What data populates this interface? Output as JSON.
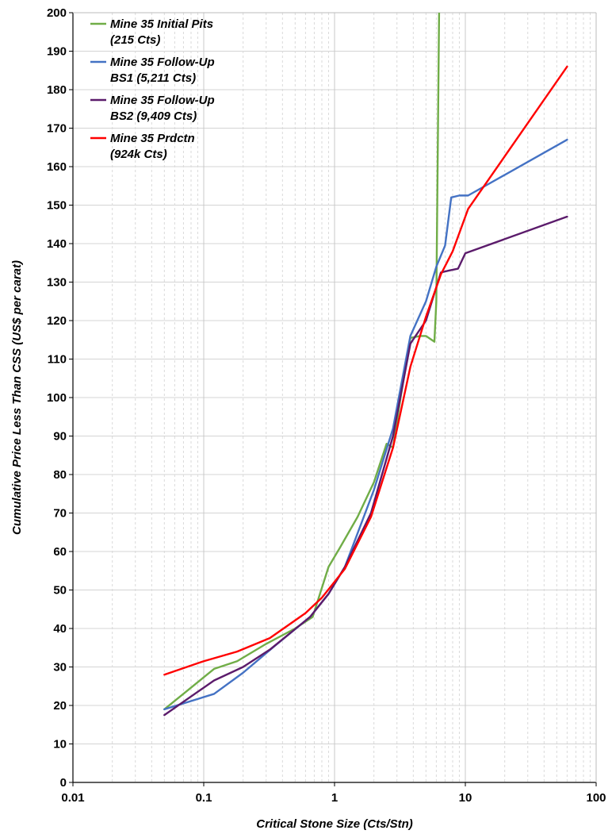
{
  "chart_data": {
    "type": "line",
    "xlabel": "Critical Stone Size (Cts/Stn)",
    "ylabel": "Cumulative Price Less Than CSS (US$ per carat)",
    "x_scale": "log",
    "xlim": [
      0.01,
      100
    ],
    "ylim": [
      0,
      200
    ],
    "x_ticks": [
      {
        "value": 0.01,
        "label": "0.01"
      },
      {
        "value": 0.1,
        "label": "0.1"
      },
      {
        "value": 1,
        "label": "1"
      },
      {
        "value": 10,
        "label": "10"
      },
      {
        "value": 100,
        "label": "100"
      }
    ],
    "y_ticks": [
      0,
      10,
      20,
      30,
      40,
      50,
      60,
      70,
      80,
      90,
      100,
      110,
      120,
      130,
      140,
      150,
      160,
      170,
      180,
      190,
      200
    ],
    "grid": true,
    "legend_position": "top-left",
    "series": [
      {
        "name_lines": [
          "Mine 35 Initial Pits",
          "(215 Cts)"
        ],
        "color": "#70ad47",
        "points": [
          [
            0.05,
            19
          ],
          [
            0.12,
            29.5
          ],
          [
            0.18,
            31.5
          ],
          [
            0.3,
            36
          ],
          [
            0.5,
            40
          ],
          [
            0.68,
            43
          ],
          [
            0.9,
            56
          ],
          [
            1.1,
            61
          ],
          [
            1.5,
            69
          ],
          [
            2.0,
            78
          ],
          [
            2.5,
            88
          ],
          [
            2.8,
            87
          ],
          [
            3.2,
            100
          ],
          [
            3.8,
            115.5
          ],
          [
            4.5,
            116
          ],
          [
            5.0,
            116
          ],
          [
            5.8,
            114.5
          ],
          [
            6.0,
            125
          ],
          [
            6.3,
            200
          ]
        ]
      },
      {
        "name_lines": [
          "Mine 35 Follow-Up",
          "BS1 (5,211 Cts)"
        ],
        "color": "#4472c4",
        "points": [
          [
            0.05,
            19
          ],
          [
            0.12,
            23
          ],
          [
            0.2,
            28.5
          ],
          [
            0.35,
            35.5
          ],
          [
            0.65,
            43
          ],
          [
            0.9,
            49
          ],
          [
            1.2,
            56
          ],
          [
            2.0,
            76
          ],
          [
            2.8,
            92
          ],
          [
            3.8,
            116
          ],
          [
            5.0,
            125
          ],
          [
            6.0,
            134
          ],
          [
            7.0,
            139.5
          ],
          [
            7.8,
            152
          ],
          [
            9.0,
            152.5
          ],
          [
            10.5,
            152.5
          ],
          [
            60,
            167
          ]
        ]
      },
      {
        "name_lines": [
          "Mine 35 Follow-Up",
          "BS2 (9,409 Cts)"
        ],
        "color": "#5b1b6b",
        "points": [
          [
            0.05,
            17.5
          ],
          [
            0.12,
            26.5
          ],
          [
            0.2,
            30
          ],
          [
            0.32,
            34.5
          ],
          [
            0.65,
            43
          ],
          [
            0.9,
            49
          ],
          [
            1.2,
            56
          ],
          [
            1.9,
            70
          ],
          [
            2.8,
            90
          ],
          [
            3.8,
            114
          ],
          [
            5.0,
            120
          ],
          [
            6.5,
            132.5
          ],
          [
            7.5,
            133
          ],
          [
            8.8,
            133.5
          ],
          [
            10,
            137.5
          ],
          [
            60,
            147
          ]
        ]
      },
      {
        "name_lines": [
          "Mine 35 Prdctn",
          "(924k Cts)"
        ],
        "color": "#ff0000",
        "points": [
          [
            0.05,
            28
          ],
          [
            0.1,
            31.5
          ],
          [
            0.18,
            34
          ],
          [
            0.32,
            37.5
          ],
          [
            0.6,
            44
          ],
          [
            0.8,
            48
          ],
          [
            1.2,
            55.5
          ],
          [
            1.9,
            69
          ],
          [
            2.8,
            87
          ],
          [
            3.8,
            108
          ],
          [
            5.0,
            121
          ],
          [
            6.5,
            132
          ],
          [
            8.0,
            138
          ],
          [
            10.5,
            149
          ],
          [
            60,
            186
          ]
        ]
      }
    ]
  }
}
